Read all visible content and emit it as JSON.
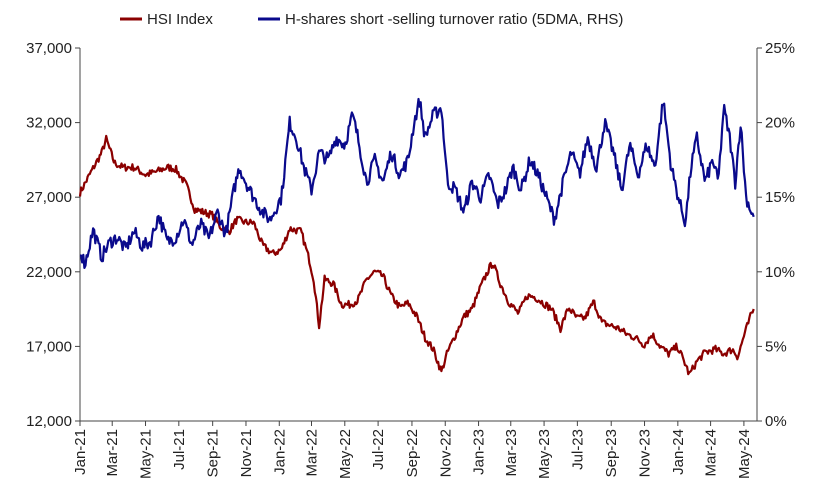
{
  "chart_data": {
    "type": "line",
    "title": "",
    "xlabel": "",
    "ylabel_left": "",
    "ylabel_right": "",
    "legend_position": "top",
    "grid": false,
    "x_range": [
      "2021-01",
      "2024-05"
    ],
    "x_ticks": [
      "Jan-21",
      "Mar-21",
      "May-21",
      "Jul-21",
      "Sep-21",
      "Nov-21",
      "Jan-22",
      "Mar-22",
      "May-22",
      "Jul-22",
      "Sep-22",
      "Nov-22",
      "Jan-23",
      "Mar-23",
      "May-23",
      "Jul-23",
      "Sep-23",
      "Nov-23",
      "Jan-24",
      "Mar-24",
      "May-24"
    ],
    "y_left": {
      "min": 12000,
      "max": 37000,
      "ticks": [
        "12,000",
        "17,000",
        "22,000",
        "27,000",
        "32,000",
        "37,000"
      ]
    },
    "y_right": {
      "min": 0,
      "max": 25,
      "ticks": [
        "0%",
        "5%",
        "10%",
        "15%",
        "20%",
        "25%"
      ]
    },
    "series": [
      {
        "name": "HSI Index",
        "axis": "left",
        "color": "#8B0000",
        "points": [
          [
            "2021-01-01",
            27300
          ],
          [
            "2021-01-20",
            28600
          ],
          [
            "2021-02-10",
            30000
          ],
          [
            "2021-02-18",
            30900
          ],
          [
            "2021-03-05",
            29300
          ],
          [
            "2021-03-20",
            29000
          ],
          [
            "2021-04-10",
            29000
          ],
          [
            "2021-05-01",
            28500
          ],
          [
            "2021-05-20",
            28700
          ],
          [
            "2021-06-10",
            29000
          ],
          [
            "2021-06-25",
            28900
          ],
          [
            "2021-07-15",
            27800
          ],
          [
            "2021-07-30",
            26200
          ],
          [
            "2021-08-15",
            26000
          ],
          [
            "2021-09-01",
            25800
          ],
          [
            "2021-09-15",
            25000
          ],
          [
            "2021-10-01",
            24700
          ],
          [
            "2021-10-15",
            25500
          ],
          [
            "2021-11-01",
            25300
          ],
          [
            "2021-11-15",
            25300
          ],
          [
            "2021-12-01",
            23800
          ],
          [
            "2021-12-20",
            23200
          ],
          [
            "2022-01-05",
            23500
          ],
          [
            "2022-01-20",
            24900
          ],
          [
            "2022-02-10",
            24700
          ],
          [
            "2022-02-25",
            22800
          ],
          [
            "2022-03-05",
            21500
          ],
          [
            "2022-03-15",
            18400
          ],
          [
            "2022-03-25",
            21500
          ],
          [
            "2022-04-10",
            21200
          ],
          [
            "2022-04-25",
            19800
          ],
          [
            "2022-05-10",
            19800
          ],
          [
            "2022-05-25",
            20100
          ],
          [
            "2022-06-10",
            21500
          ],
          [
            "2022-06-25",
            22000
          ],
          [
            "2022-07-10",
            21700
          ],
          [
            "2022-07-25",
            20400
          ],
          [
            "2022-08-10",
            19600
          ],
          [
            "2022-08-25",
            19900
          ],
          [
            "2022-09-10",
            19000
          ],
          [
            "2022-09-25",
            17600
          ],
          [
            "2022-10-10",
            16800
          ],
          [
            "2022-10-25",
            15300
          ],
          [
            "2022-11-05",
            16600
          ],
          [
            "2022-11-20",
            17800
          ],
          [
            "2022-12-05",
            19000
          ],
          [
            "2022-12-20",
            19500
          ],
          [
            "2023-01-05",
            21000
          ],
          [
            "2023-01-20",
            22200
          ],
          [
            "2023-01-27",
            22600
          ],
          [
            "2023-02-10",
            21200
          ],
          [
            "2023-02-25",
            20000
          ],
          [
            "2023-03-15",
            19200
          ],
          [
            "2023-03-31",
            20400
          ],
          [
            "2023-04-15",
            20300
          ],
          [
            "2023-04-30",
            19900
          ],
          [
            "2023-05-15",
            19500
          ],
          [
            "2023-05-31",
            18200
          ],
          [
            "2023-06-15",
            19600
          ],
          [
            "2023-06-30",
            18900
          ],
          [
            "2023-07-15",
            18900
          ],
          [
            "2023-07-31",
            20000
          ],
          [
            "2023-08-15",
            18600
          ],
          [
            "2023-08-31",
            18400
          ],
          [
            "2023-09-15",
            18200
          ],
          [
            "2023-09-30",
            17800
          ],
          [
            "2023-10-15",
            17600
          ],
          [
            "2023-10-31",
            17100
          ],
          [
            "2023-11-15",
            17800
          ],
          [
            "2023-11-30",
            17000
          ],
          [
            "2023-12-15",
            16500
          ],
          [
            "2023-12-31",
            17000
          ],
          [
            "2024-01-15",
            15800
          ],
          [
            "2024-01-22",
            15100
          ],
          [
            "2024-02-05",
            16000
          ],
          [
            "2024-02-20",
            16600
          ],
          [
            "2024-03-10",
            16800
          ],
          [
            "2024-03-25",
            16500
          ],
          [
            "2024-04-10",
            16800
          ],
          [
            "2024-04-20",
            16300
          ],
          [
            "2024-05-01",
            17700
          ],
          [
            "2024-05-15",
            19200
          ],
          [
            "2024-05-20",
            19500
          ]
        ]
      },
      {
        "name": "H-shares short -selling turnover ratio (5DMA, RHS)",
        "axis": "right",
        "color": "#0A0A8C",
        "points": [
          [
            "2021-01-01",
            11.5
          ],
          [
            "2021-01-10",
            10.5
          ],
          [
            "2021-01-25",
            12.8
          ],
          [
            "2021-02-10",
            11.0
          ],
          [
            "2021-02-25",
            12.0
          ],
          [
            "2021-03-10",
            12.3
          ],
          [
            "2021-03-25",
            11.5
          ],
          [
            "2021-04-10",
            12.7
          ],
          [
            "2021-04-25",
            11.7
          ],
          [
            "2021-05-10",
            12.0
          ],
          [
            "2021-05-25",
            13.8
          ],
          [
            "2021-06-10",
            12.0
          ],
          [
            "2021-06-25",
            12.3
          ],
          [
            "2021-07-10",
            13.5
          ],
          [
            "2021-07-25",
            11.8
          ],
          [
            "2021-08-10",
            13.2
          ],
          [
            "2021-08-25",
            12.2
          ],
          [
            "2021-09-10",
            14.0
          ],
          [
            "2021-09-25",
            12.5
          ],
          [
            "2021-10-10",
            15.5
          ],
          [
            "2021-10-20",
            17.0
          ],
          [
            "2021-11-01",
            16.0
          ],
          [
            "2021-11-15",
            15.0
          ],
          [
            "2021-12-01",
            14.0
          ],
          [
            "2021-12-15",
            13.5
          ],
          [
            "2022-01-05",
            15.0
          ],
          [
            "2022-01-20",
            20.0
          ],
          [
            "2022-02-01",
            19.0
          ],
          [
            "2022-02-15",
            17.0
          ],
          [
            "2022-03-01",
            15.5
          ],
          [
            "2022-03-15",
            18.0
          ],
          [
            "2022-04-01",
            17.5
          ],
          [
            "2022-04-15",
            19.0
          ],
          [
            "2022-05-01",
            18.5
          ],
          [
            "2022-05-15",
            20.5
          ],
          [
            "2022-05-25",
            19.0
          ],
          [
            "2022-06-10",
            16.0
          ],
          [
            "2022-06-25",
            17.5
          ],
          [
            "2022-07-10",
            16.0
          ],
          [
            "2022-07-25",
            18.0
          ],
          [
            "2022-08-10",
            16.5
          ],
          [
            "2022-08-25",
            17.5
          ],
          [
            "2022-09-05",
            20.0
          ],
          [
            "2022-09-15",
            21.5
          ],
          [
            "2022-09-25",
            19.0
          ],
          [
            "2022-10-10",
            20.5
          ],
          [
            "2022-10-25",
            21.0
          ],
          [
            "2022-11-05",
            16.0
          ],
          [
            "2022-11-20",
            15.5
          ],
          [
            "2022-12-05",
            14.0
          ],
          [
            "2022-12-20",
            16.0
          ],
          [
            "2023-01-05",
            15.0
          ],
          [
            "2023-01-20",
            16.5
          ],
          [
            "2023-02-05",
            14.5
          ],
          [
            "2023-02-20",
            15.5
          ],
          [
            "2023-03-05",
            17.0
          ],
          [
            "2023-03-20",
            15.5
          ],
          [
            "2023-04-05",
            17.5
          ],
          [
            "2023-04-20",
            16.5
          ],
          [
            "2023-05-05",
            15.0
          ],
          [
            "2023-05-20",
            13.5
          ],
          [
            "2023-06-05",
            16.0
          ],
          [
            "2023-06-20",
            18.0
          ],
          [
            "2023-07-05",
            16.5
          ],
          [
            "2023-07-20",
            19.0
          ],
          [
            "2023-08-05",
            17.0
          ],
          [
            "2023-08-20",
            20.0
          ],
          [
            "2023-09-05",
            18.0
          ],
          [
            "2023-09-20",
            15.5
          ],
          [
            "2023-10-05",
            18.5
          ],
          [
            "2023-10-20",
            16.5
          ],
          [
            "2023-11-05",
            18.5
          ],
          [
            "2023-11-20",
            17.0
          ],
          [
            "2023-12-05",
            21.5
          ],
          [
            "2023-12-20",
            17.0
          ],
          [
            "2024-01-05",
            14.5
          ],
          [
            "2024-01-15",
            13.3
          ],
          [
            "2024-01-25",
            17.0
          ],
          [
            "2024-02-05",
            19.0
          ],
          [
            "2024-02-20",
            16.0
          ],
          [
            "2024-03-05",
            17.5
          ],
          [
            "2024-03-15",
            16.0
          ],
          [
            "2024-03-25",
            21.0
          ],
          [
            "2024-04-05",
            19.0
          ],
          [
            "2024-04-15",
            16.0
          ],
          [
            "2024-04-25",
            20.0
          ],
          [
            "2024-05-05",
            15.0
          ],
          [
            "2024-05-15",
            14.0
          ],
          [
            "2024-05-20",
            13.6
          ]
        ]
      }
    ]
  }
}
